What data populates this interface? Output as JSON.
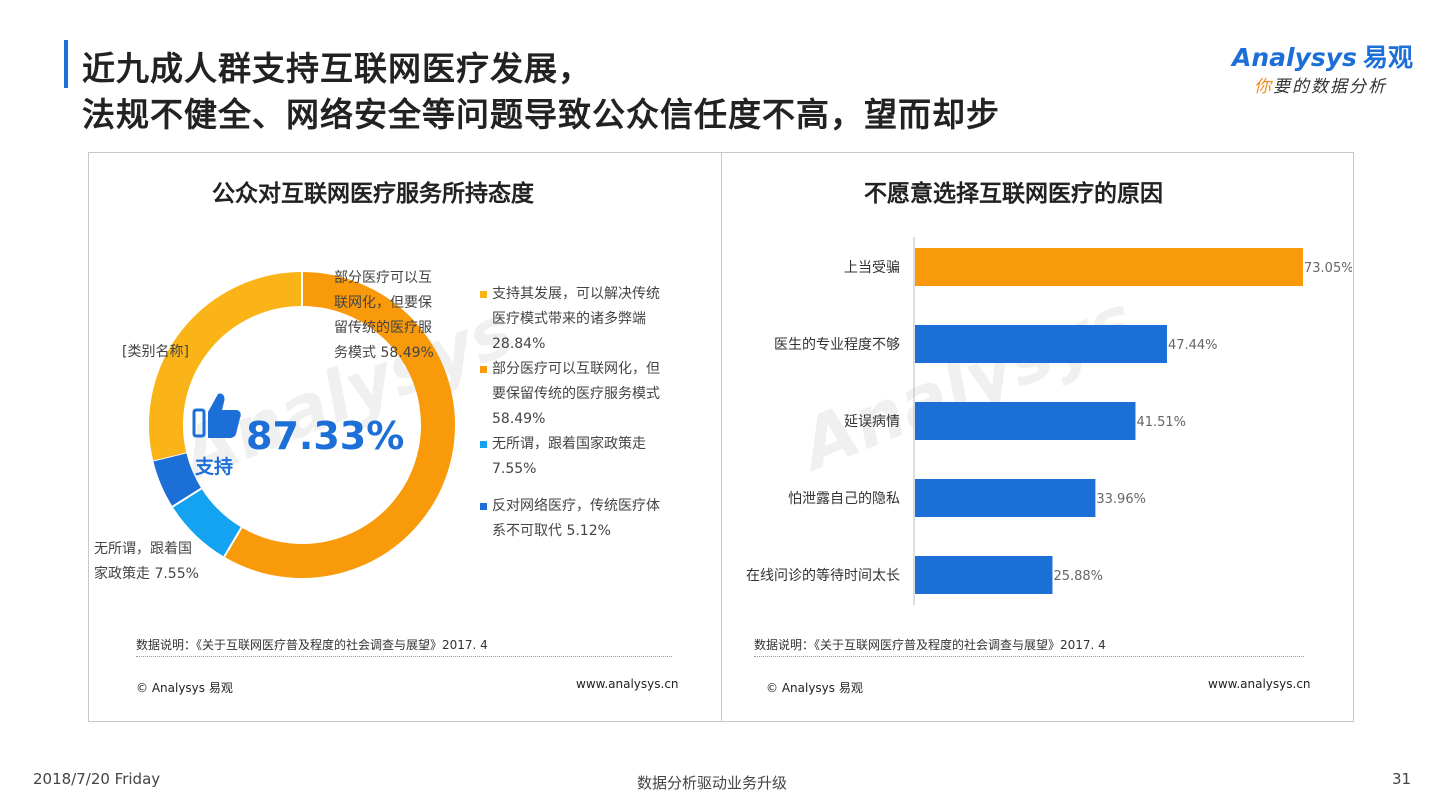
{
  "header": {
    "title_line1": "近九成人群支持互联网医疗发展，",
    "title_line2": "法规不健全、网络安全等问题导致公众信任度不高，望而却步",
    "accent_color": "#1d6fd8"
  },
  "logo": {
    "brand_en": "Analysys",
    "brand_cn": "易观",
    "tagline_first": "你",
    "tagline_rest": "要的数据分析"
  },
  "left_panel": {
    "title": "公众对互联网医疗服务所持态度",
    "center_value": "87.33%",
    "center_label": "支持",
    "slice_labels": {
      "partial": [
        "部分医疗可以互",
        "联网化，但要保",
        "留传统的医疗服",
        "务模式 58.49%"
      ],
      "support": "[类别名称]",
      "indifferent": [
        "无所谓，跟着国",
        "家政策走 7.55%"
      ]
    },
    "legend": [
      {
        "text": "支持其发展，可以解决传统医疗模式带来的诸多弊端 28.84%",
        "color": "#fbb417"
      },
      {
        "text": "部分医疗可以互联网化，但要保留传统的医疗服务模式 58.49%",
        "color": "#f99a0b"
      },
      {
        "text": "无所谓，跟着国家政策走 7.55%",
        "color": "#14a3f0"
      },
      {
        "text": "反对网络医疗，传统医疗体系不可取代 5.12%",
        "color": "#1d6fd8"
      }
    ],
    "source": "数据说明：《关于互联网医疗普及程度的社会调查与展望》2017. 4",
    "copyright": "© Analysys 易观",
    "website": "www.analysys.cn"
  },
  "right_panel": {
    "title": "不愿意选择互联网医疗的原因",
    "source": "数据说明：《关于互联网医疗普及程度的社会调查与展望》2017. 4",
    "copyright": "© Analysys 易观",
    "website": "www.analysys.cn"
  },
  "chart_data": [
    {
      "type": "pie",
      "title": "公众对互联网医疗服务所持态度",
      "categories": [
        "支持其发展，可以解决传统医疗模式带来的诸多弊端",
        "部分医疗可以互联网化，但要保留传统的医疗服务模式",
        "无所谓，跟着国家政策走",
        "反对网络医疗，传统医疗体系不可取代"
      ],
      "values": [
        28.84,
        58.49,
        7.55,
        5.12
      ],
      "colors": [
        "#fbb417",
        "#f99a0b",
        "#14a3f0",
        "#1d6fd8"
      ],
      "legend_position": "right"
    },
    {
      "type": "bar",
      "orientation": "horizontal",
      "title": "不愿意选择互联网医疗的原因",
      "categories": [
        "上当受骗",
        "医生的专业程度不够",
        "延误病情",
        "怕泄露自己的隐私",
        "在线问诊的等待时间太长"
      ],
      "values": [
        73.05,
        47.44,
        41.51,
        33.96,
        25.88
      ],
      "value_labels": [
        "73.05%",
        "47.44%",
        "41.51%",
        "33.96%",
        "25.88%"
      ],
      "colors": [
        "#f99a0b",
        "#1d6fd8",
        "#1d6fd8",
        "#1d6fd8",
        "#1d6fd8"
      ],
      "xlim": [
        0,
        73.05
      ],
      "grid": false
    }
  ],
  "footer": {
    "date": "2018/7/20 Friday",
    "slogan": "数据分析驱动业务升级",
    "page": "31"
  }
}
